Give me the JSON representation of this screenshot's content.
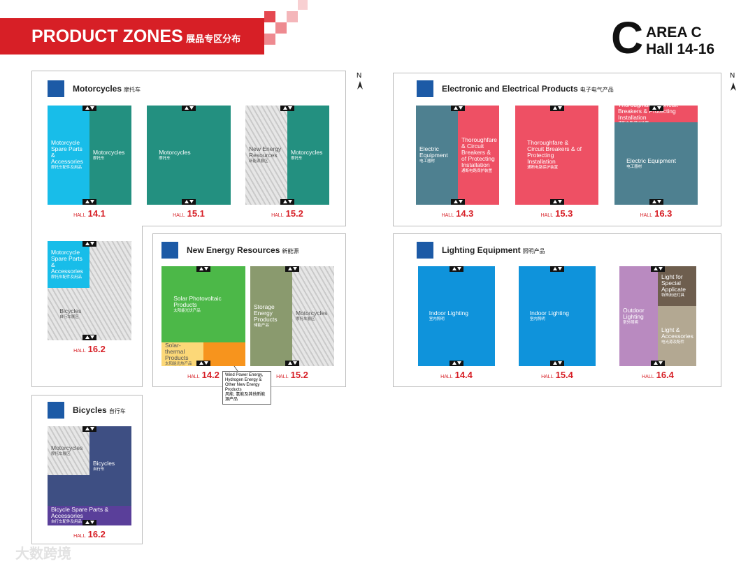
{
  "header": {
    "title": "PRODUCT ZONES",
    "title_cn": "展品专区分布",
    "area_letter": "C",
    "area": "AREA C",
    "halls": "Hall 14-16"
  },
  "north": [
    "N",
    "N"
  ],
  "sections": [
    {
      "title": "Motorcycles",
      "title_cn": "摩托车"
    },
    {
      "title": "Electronic and Electrical Products",
      "title_cn": "电子电气产品"
    },
    {
      "title": "New Energy Resources",
      "title_cn": "新能源"
    },
    {
      "title": "Lighting Equipment",
      "title_cn": "照明产品"
    },
    {
      "title": "Bicycles",
      "title_cn": "自行车"
    }
  ],
  "halls": [
    {
      "label": "HALL",
      "number": "14.1",
      "zones": [
        {
          "name": "Motorcycle Spare Parts & Accessories",
          "name_cn": "摩托车配件及用品"
        },
        {
          "name": "Motorcycles",
          "name_cn": "摩托车"
        }
      ]
    },
    {
      "label": "HALL",
      "number": "15.1",
      "zones": [
        {
          "name": "Motorcycles",
          "name_cn": "摩托车"
        }
      ]
    },
    {
      "label": "HALL",
      "number": "15.2",
      "zones": [
        {
          "name": "New Energy Resources",
          "name_cn": "新能源展区"
        },
        {
          "name": "Motorcycles",
          "name_cn": "摩托车"
        }
      ]
    },
    {
      "label": "HALL",
      "number": "16.2",
      "zones": [
        {
          "name": "Motorcycle Spare Parts & Accessories",
          "name_cn": "摩托车配件及用品"
        },
        {
          "name": "Bicycles",
          "name_cn": "自行车展区"
        }
      ]
    },
    {
      "label": "HALL",
      "number": "14.3",
      "zones": [
        {
          "name": "Electric Equipment",
          "name_cn": "电工器材"
        },
        {
          "name": "Thoroughfare & Circuit Breakers & of Protecting Installation",
          "name_cn": "通断电路保护装置"
        }
      ]
    },
    {
      "label": "HALL",
      "number": "15.3",
      "zones": [
        {
          "name": "Thoroughfare & Circuit Breakers & of Protecting Installation",
          "name_cn": "通断电路保护装置"
        }
      ]
    },
    {
      "label": "HALL",
      "number": "16.3",
      "zones": [
        {
          "name": "Thoroughfare & Circuit Breakers & Protecting Installation",
          "name_cn": "通断电路保护装置"
        },
        {
          "name": "Electric Equipment",
          "name_cn": "电工器材"
        }
      ]
    },
    {
      "label": "HALL",
      "number": "14.2",
      "zones": [
        {
          "name": "Solar Photovoltaic Products",
          "name_cn": "太阳能光伏产品"
        },
        {
          "name": "Solar-thermal Products",
          "name_cn": "太阳能光热产品"
        }
      ]
    },
    {
      "label": "HALL",
      "number": "15.2",
      "zones": [
        {
          "name": "Storage Energy Products",
          "name_cn": "储能产品"
        },
        {
          "name": "Motorcycles",
          "name_cn": "摩托车展区"
        }
      ]
    },
    {
      "label": "HALL",
      "number": "14.4",
      "zones": [
        {
          "name": "Indoor Lighting",
          "name_cn": "室内照明"
        }
      ]
    },
    {
      "label": "HALL",
      "number": "15.4",
      "zones": [
        {
          "name": "Indoor Lighting",
          "name_cn": "室内照明"
        }
      ]
    },
    {
      "label": "HALL",
      "number": "16.4",
      "zones": [
        {
          "name": "Outdoor Lighting",
          "name_cn": "室外照明"
        },
        {
          "name": "Light for Special Applicate",
          "name_cn": "特殊用途灯具"
        },
        {
          "name": "Light & Accessories",
          "name_cn": "电光源及配件"
        }
      ]
    },
    {
      "label": "HALL",
      "number": "16.2",
      "zones": [
        {
          "name": "Motorcycles",
          "name_cn": "摩托车展区"
        },
        {
          "name": "Bicycles",
          "name_cn": "自行车"
        },
        {
          "name": "Bicycle Spare Parts & Accessories",
          "name_cn": "自行车配件及用品"
        }
      ]
    }
  ],
  "callout": {
    "text": "Wind Power Energy, Hydrogen Energy & Other New Energy Products",
    "text_cn": "风能, 氢能及其他新能源产品"
  },
  "watermark": "大数跨境"
}
